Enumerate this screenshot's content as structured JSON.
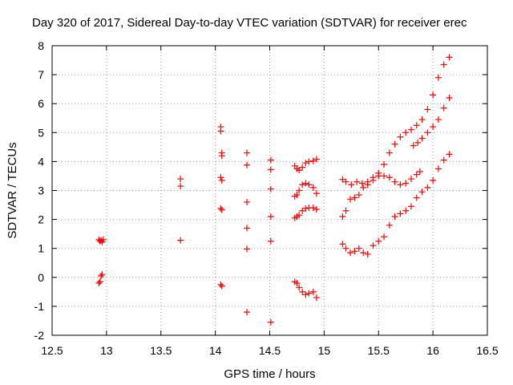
{
  "chart_data": {
    "type": "scatter",
    "title": "Day 320 of 2017, Sidereal Day-to-day VTEC variation (SDTVAR) for receiver erec",
    "xlabel": "GPS time / hours",
    "ylabel": "SDTVAR / TECUs",
    "xlim": [
      12.5,
      16.5
    ],
    "ylim": [
      -2,
      8
    ],
    "xticks": [
      "12.5",
      "13",
      "13.5",
      "14",
      "14.5",
      "15",
      "15.5",
      "16",
      "16.5"
    ],
    "yticks": [
      "-2",
      "-1",
      "0",
      "1",
      "2",
      "3",
      "4",
      "5",
      "6",
      "7",
      "8"
    ],
    "grid": true,
    "marker": "plus",
    "color": "#ff0000",
    "series": [
      {
        "name": "SDTVAR",
        "points": [
          [
            12.93,
            1.3
          ],
          [
            12.94,
            1.25
          ],
          [
            12.95,
            1.28
          ],
          [
            12.96,
            1.22
          ],
          [
            12.97,
            1.3
          ],
          [
            12.93,
            -0.2
          ],
          [
            12.94,
            -0.15
          ],
          [
            12.95,
            0.05
          ],
          [
            12.96,
            0.1
          ],
          [
            13.68,
            3.4
          ],
          [
            13.68,
            3.15
          ],
          [
            13.68,
            1.28
          ],
          [
            14.05,
            5.2
          ],
          [
            14.05,
            5.05
          ],
          [
            14.06,
            4.3
          ],
          [
            14.06,
            4.2
          ],
          [
            14.05,
            3.45
          ],
          [
            14.06,
            3.35
          ],
          [
            14.05,
            2.38
          ],
          [
            14.06,
            2.33
          ],
          [
            14.05,
            -0.25
          ],
          [
            14.06,
            -0.3
          ],
          [
            14.29,
            4.3
          ],
          [
            14.29,
            3.88
          ],
          [
            14.29,
            2.6
          ],
          [
            14.29,
            1.7
          ],
          [
            14.29,
            0.98
          ],
          [
            14.29,
            -1.2
          ],
          [
            14.51,
            4.05
          ],
          [
            14.51,
            3.72
          ],
          [
            14.51,
            3.05
          ],
          [
            14.51,
            2.1
          ],
          [
            14.51,
            1.25
          ],
          [
            14.51,
            -1.55
          ],
          [
            14.73,
            3.85
          ],
          [
            14.75,
            3.75
          ],
          [
            14.77,
            3.7
          ],
          [
            14.8,
            3.8
          ],
          [
            14.83,
            3.95
          ],
          [
            14.86,
            4.0
          ],
          [
            14.9,
            4.02
          ],
          [
            14.93,
            4.08
          ],
          [
            14.73,
            2.8
          ],
          [
            14.75,
            2.85
          ],
          [
            14.77,
            3.0
          ],
          [
            14.8,
            3.2
          ],
          [
            14.83,
            3.25
          ],
          [
            14.86,
            3.2
          ],
          [
            14.9,
            3.1
          ],
          [
            14.93,
            2.9
          ],
          [
            14.73,
            2.05
          ],
          [
            14.75,
            2.1
          ],
          [
            14.77,
            2.15
          ],
          [
            14.8,
            2.3
          ],
          [
            14.83,
            2.38
          ],
          [
            14.86,
            2.4
          ],
          [
            14.9,
            2.4
          ],
          [
            14.93,
            2.35
          ],
          [
            14.73,
            -0.15
          ],
          [
            14.75,
            -0.2
          ],
          [
            14.77,
            -0.35
          ],
          [
            14.8,
            -0.5
          ],
          [
            14.83,
            -0.6
          ],
          [
            14.86,
            -0.55
          ],
          [
            14.9,
            -0.5
          ],
          [
            14.93,
            -0.7
          ],
          [
            15.17,
            3.38
          ],
          [
            15.2,
            3.3
          ],
          [
            15.25,
            3.2
          ],
          [
            15.3,
            3.3
          ],
          [
            15.35,
            3.25
          ],
          [
            15.4,
            3.3
          ],
          [
            15.45,
            3.45
          ],
          [
            15.5,
            3.5
          ],
          [
            15.55,
            3.5
          ],
          [
            15.6,
            3.45
          ],
          [
            15.65,
            3.3
          ],
          [
            15.7,
            3.2
          ],
          [
            15.75,
            3.25
          ],
          [
            15.8,
            3.4
          ],
          [
            15.85,
            3.55
          ],
          [
            15.88,
            3.65
          ],
          [
            15.17,
            2.1
          ],
          [
            15.2,
            2.3
          ],
          [
            15.24,
            2.7
          ],
          [
            15.28,
            2.75
          ],
          [
            15.32,
            2.85
          ],
          [
            15.36,
            3.1
          ],
          [
            15.4,
            3.2
          ],
          [
            15.45,
            3.35
          ],
          [
            15.5,
            3.6
          ],
          [
            15.55,
            3.9
          ],
          [
            15.6,
            4.3
          ],
          [
            15.65,
            4.6
          ],
          [
            15.7,
            4.85
          ],
          [
            15.75,
            5.0
          ],
          [
            15.8,
            5.1
          ],
          [
            15.85,
            5.25
          ],
          [
            15.9,
            5.45
          ],
          [
            15.95,
            5.8
          ],
          [
            16.0,
            6.3
          ],
          [
            16.05,
            6.9
          ],
          [
            16.1,
            7.35
          ],
          [
            16.15,
            7.6
          ],
          [
            15.17,
            1.15
          ],
          [
            15.2,
            1.0
          ],
          [
            15.24,
            0.85
          ],
          [
            15.28,
            0.9
          ],
          [
            15.32,
            1.0
          ],
          [
            15.36,
            0.85
          ],
          [
            15.4,
            0.8
          ],
          [
            15.45,
            1.1
          ],
          [
            15.5,
            1.25
          ],
          [
            15.55,
            1.4
          ],
          [
            15.6,
            1.8
          ],
          [
            15.65,
            2.1
          ],
          [
            15.7,
            2.2
          ],
          [
            15.75,
            2.3
          ],
          [
            15.8,
            2.45
          ],
          [
            15.85,
            2.75
          ],
          [
            15.9,
            2.95
          ],
          [
            15.95,
            3.1
          ],
          [
            16.0,
            3.35
          ],
          [
            16.05,
            3.75
          ],
          [
            16.1,
            4.05
          ],
          [
            16.15,
            4.25
          ],
          [
            15.82,
            4.55
          ],
          [
            15.86,
            4.65
          ],
          [
            15.9,
            4.8
          ],
          [
            15.95,
            5.0
          ],
          [
            16.0,
            5.2
          ],
          [
            16.05,
            5.45
          ],
          [
            16.1,
            5.85
          ],
          [
            16.15,
            6.2
          ]
        ]
      }
    ]
  }
}
